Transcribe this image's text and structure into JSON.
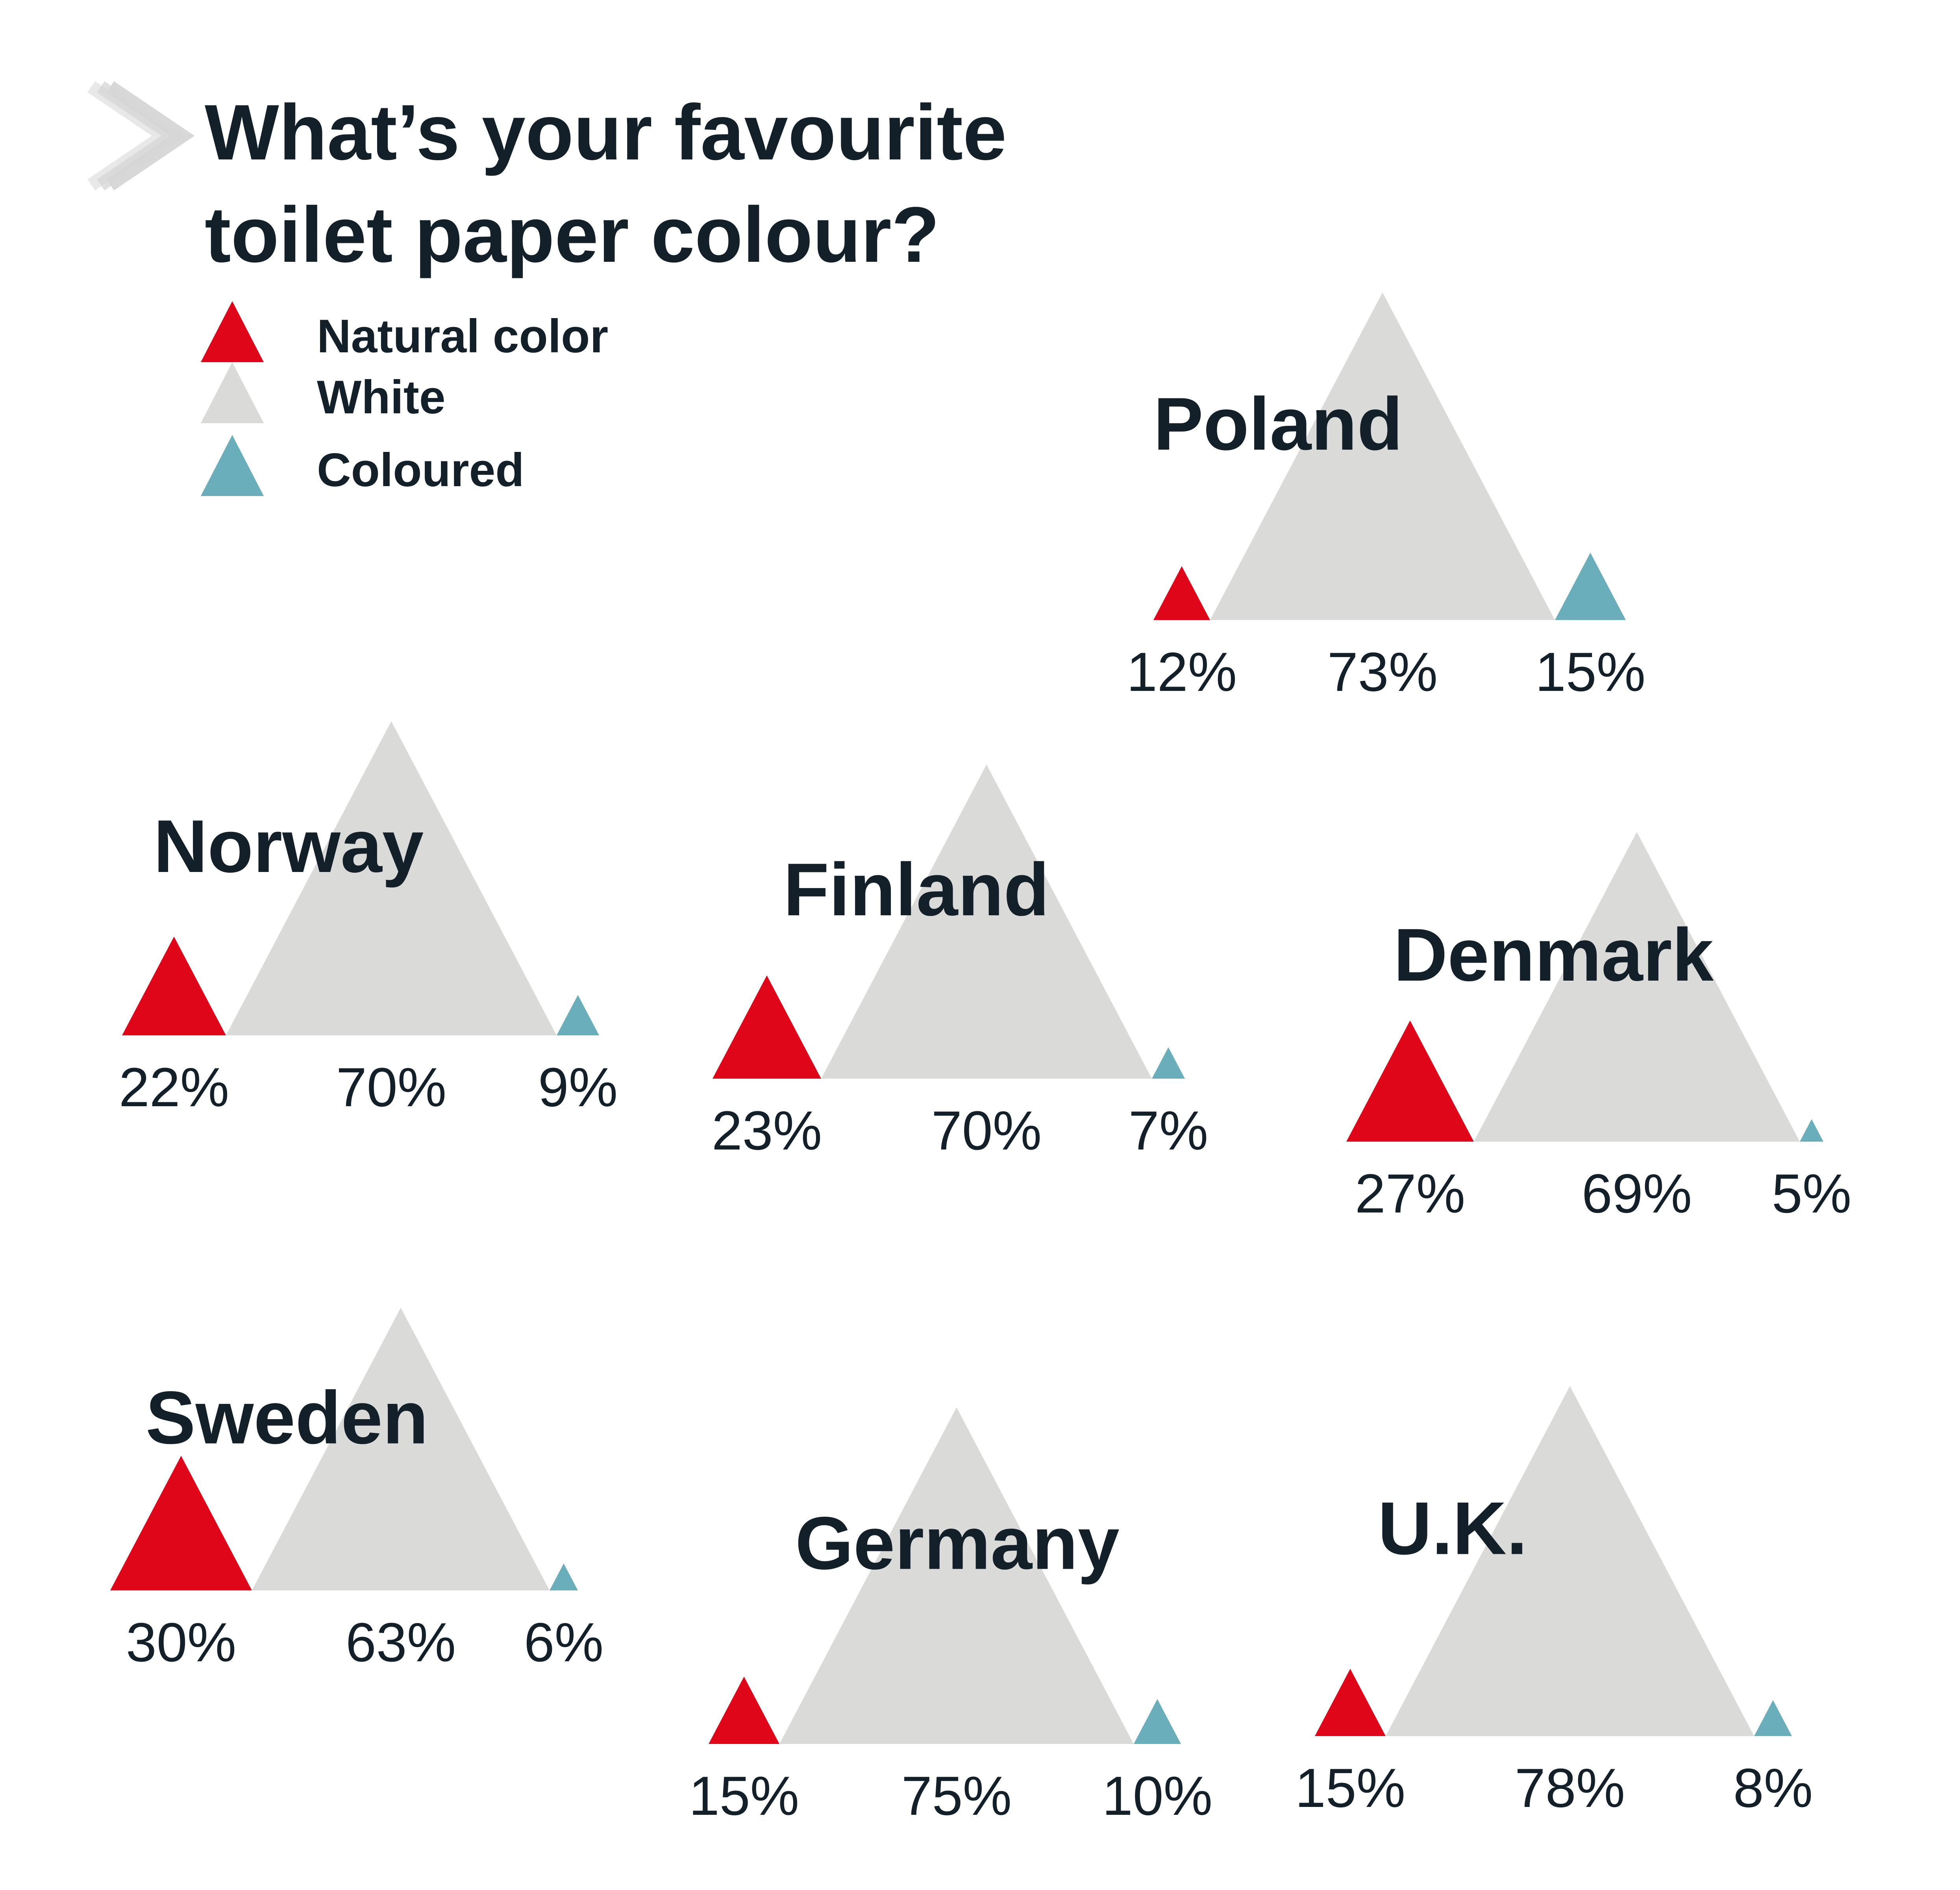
{
  "title_line1": "What’s your favourite",
  "title_line2": "toilet paper colour?",
  "colors": {
    "natural": "#e0061a",
    "white": "#dadad8",
    "coloured": "#6aaebc",
    "text": "#13202a",
    "chevron": "#d6d6d6"
  },
  "icons": {
    "title_marker": "chevron-right-icon"
  },
  "legend": [
    {
      "label": "Natural color",
      "color": "#e0061a"
    },
    {
      "label": "White",
      "color": "#dadad8"
    },
    {
      "label": "Coloured",
      "color": "#6aaebc"
    }
  ],
  "chart_data": {
    "type": "area",
    "title": "What’s your favourite toilet paper colour?",
    "categories": [
      "Poland",
      "Norway",
      "Finland",
      "Denmark",
      "Sweden",
      "Germany",
      "U.K."
    ],
    "series": [
      {
        "name": "Natural color",
        "values": [
          12,
          22,
          23,
          27,
          30,
          15,
          15
        ],
        "labels": [
          "12%",
          "22%",
          "23%",
          "27%",
          "30%",
          "15%",
          "15%"
        ]
      },
      {
        "name": "White",
        "values": [
          73,
          70,
          70,
          69,
          63,
          75,
          78
        ],
        "labels": [
          "73%",
          "70%",
          "70%",
          "69%",
          "63%",
          "75%",
          "78%"
        ]
      },
      {
        "name": "Coloured",
        "values": [
          15,
          9,
          7,
          5,
          6,
          10,
          8
        ],
        "labels": [
          "15%",
          "9%",
          "7%",
          "5%",
          "6%",
          "10%",
          "8%"
        ]
      }
    ],
    "legend": "top-left",
    "grid": false
  }
}
